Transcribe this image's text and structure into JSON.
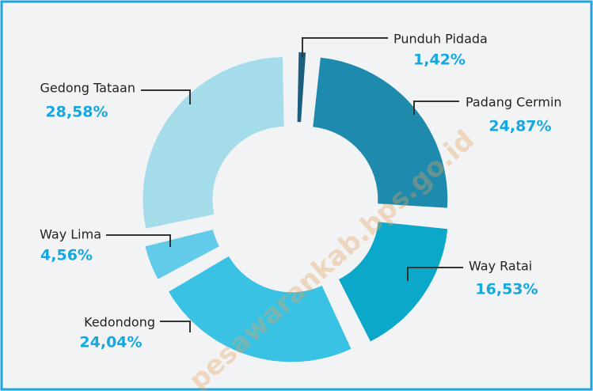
{
  "chart_data": {
    "type": "donut",
    "categories": [
      "Punduh Pidada",
      "Padang Cermin",
      "Way Ratai",
      "Kedondong",
      "Way Lima",
      "Gedong Tataan"
    ],
    "values": [
      1.42,
      24.87,
      16.53,
      24.04,
      4.56,
      28.58
    ],
    "value_labels": [
      "1,42%",
      "24,87%",
      "16,53%",
      "24,04%",
      "4,56%",
      "28,58%"
    ],
    "colors": [
      "#1b5e7e",
      "#1e8bae",
      "#0ba8c9",
      "#39c2e4",
      "#62cbe9",
      "#a4dcea"
    ],
    "watermark": "pesawarankab.bps.go.id"
  }
}
